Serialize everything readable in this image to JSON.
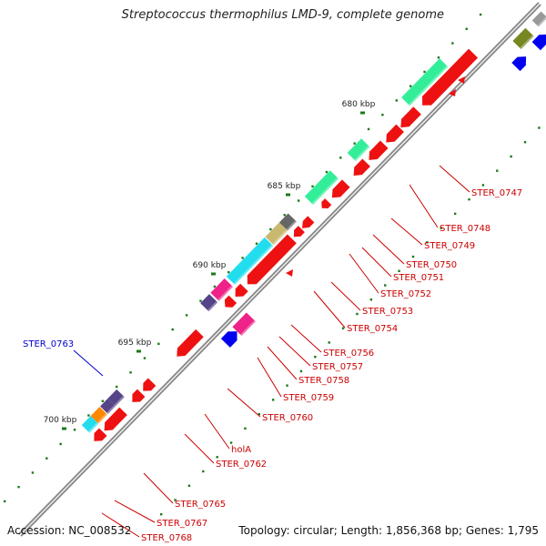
{
  "title": "Streptococcus thermophilus LMD-9, complete genome",
  "footer": {
    "accession_label": "Accession:",
    "accession": "NC_008532",
    "topology": "Topology: circular; Length: 1,856,368 bp; Genes: 1,795"
  },
  "colors": {
    "backbone": "#8a8a8a",
    "label_red": "#cc0000",
    "label_blue": "#0000cc",
    "tick_green": "#1a7a1a"
  },
  "scale_ticks": [
    {
      "label": "680 kbp"
    },
    {
      "label": "685 kbp"
    },
    {
      "label": "690 kbp"
    },
    {
      "label": "695 kbp"
    },
    {
      "label": "700 kbp"
    }
  ],
  "gene_labels": [
    {
      "text": "STER_0747",
      "color": "red"
    },
    {
      "text": "STER_0748",
      "color": "red"
    },
    {
      "text": "STER_0749",
      "color": "red"
    },
    {
      "text": "STER_0750",
      "color": "red"
    },
    {
      "text": "STER_0751",
      "color": "red"
    },
    {
      "text": "STER_0752",
      "color": "red"
    },
    {
      "text": "STER_0753",
      "color": "red"
    },
    {
      "text": "STER_0754",
      "color": "red"
    },
    {
      "text": "STER_0756",
      "color": "red"
    },
    {
      "text": "STER_0757",
      "color": "red"
    },
    {
      "text": "STER_0758",
      "color": "red"
    },
    {
      "text": "STER_0759",
      "color": "red"
    },
    {
      "text": "STER_0760",
      "color": "red"
    },
    {
      "text": "holA",
      "color": "red"
    },
    {
      "text": "STER_0762",
      "color": "red"
    },
    {
      "text": "STER_0763",
      "color": "blue"
    },
    {
      "text": "STER_0765",
      "color": "red"
    },
    {
      "text": "STER_0767",
      "color": "red"
    },
    {
      "text": "STER_0768",
      "color": "red"
    }
  ]
}
